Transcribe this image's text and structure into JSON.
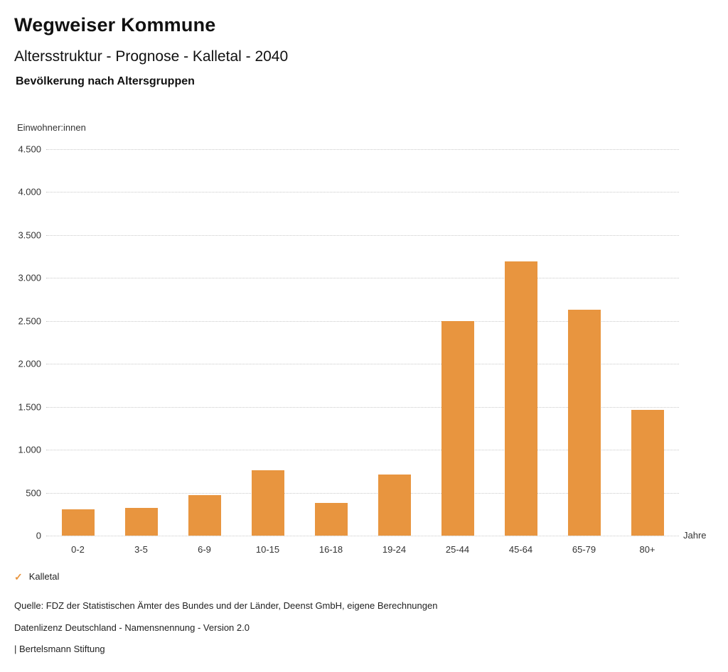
{
  "header": {
    "title": "Wegweiser Kommune",
    "subtitle": "Altersstruktur - Prognose - Kalletal - 2040",
    "chart_heading": "Bevölkerung nach Altersgruppen"
  },
  "chart_data": {
    "type": "bar",
    "title": "Bevölkerung nach Altersgruppen",
    "ylabel": "Einwohner:innen",
    "xlabel": "Jahre",
    "categories": [
      "0-2",
      "3-5",
      "6-9",
      "10-15",
      "16-18",
      "19-24",
      "25-44",
      "45-64",
      "65-79",
      "80+"
    ],
    "series": [
      {
        "name": "Kalletal",
        "values": [
          305,
          320,
          470,
          760,
          380,
          710,
          2500,
          3190,
          2630,
          1465
        ]
      }
    ],
    "ylim": [
      0,
      4500
    ],
    "ytick_step": 500,
    "ytick_labels": [
      "0",
      "500",
      "1.000",
      "1.500",
      "2.000",
      "2.500",
      "3.000",
      "3.500",
      "4.000",
      "4.500"
    ],
    "grid": true,
    "legend_position": "bottom",
    "bar_color": "#E8953F"
  },
  "legend": {
    "check_icon": "✓",
    "label": "Kalletal"
  },
  "footer": {
    "source": "Quelle: FDZ der Statistischen Ämter des Bundes und der Länder, Deenst GmbH, eigene Berechnungen",
    "license": "Datenlizenz Deutschland - Namensnennung - Version 2.0",
    "attribution": "| Bertelsmann Stiftung"
  }
}
